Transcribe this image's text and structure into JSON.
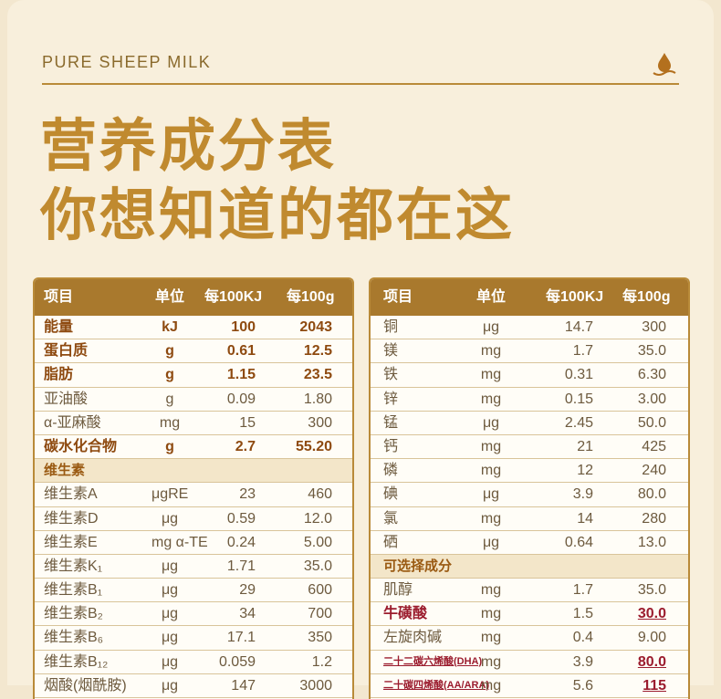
{
  "header": {
    "brand": "PURE SHEEP MILK"
  },
  "title": {
    "line1": "营养成分表",
    "line2": "你想知道的都在这"
  },
  "table_headers": {
    "item": "项目",
    "unit": "单位",
    "per_kj": "每100KJ",
    "per_100g": "每100g"
  },
  "left_rows": [
    {
      "name": "能量",
      "unit": "kJ",
      "per_kj": "100",
      "per_100g": "2043",
      "style": "bold"
    },
    {
      "name": "蛋白质",
      "unit": "g",
      "per_kj": "0.61",
      "per_100g": "12.5",
      "style": "bold"
    },
    {
      "name": "脂肪",
      "unit": "g",
      "per_kj": "1.15",
      "per_100g": "23.5",
      "style": "bold"
    },
    {
      "name": "亚油酸",
      "unit": "g",
      "per_kj": "0.09",
      "per_100g": "1.80",
      "style": ""
    },
    {
      "name": "α-亚麻酸",
      "unit": "mg",
      "per_kj": "15",
      "per_100g": "300",
      "style": ""
    },
    {
      "name": "碳水化合物",
      "unit": "g",
      "per_kj": "2.7",
      "per_100g": "55.20",
      "style": "bold"
    },
    {
      "name": "维生素",
      "unit": "",
      "per_kj": "",
      "per_100g": "",
      "style": "section"
    },
    {
      "name": "维生素A",
      "unit": "μgRE",
      "per_kj": "23",
      "per_100g": "460",
      "style": ""
    },
    {
      "name": "维生素D",
      "unit": "μg",
      "per_kj": "0.59",
      "per_100g": "12.0",
      "style": ""
    },
    {
      "name": "维生素E",
      "unit": "mg α-TE",
      "per_kj": "0.24",
      "per_100g": "5.00",
      "style": ""
    },
    {
      "name": "维生素K₁",
      "unit": "μg",
      "per_kj": "1.71",
      "per_100g": "35.0",
      "style": ""
    },
    {
      "name": "维生素B₁",
      "unit": "μg",
      "per_kj": "29",
      "per_100g": "600",
      "style": ""
    },
    {
      "name": "维生素B₂",
      "unit": "μg",
      "per_kj": "34",
      "per_100g": "700",
      "style": ""
    },
    {
      "name": "维生素B₆",
      "unit": "μg",
      "per_kj": "17.1",
      "per_100g": "350",
      "style": ""
    },
    {
      "name": "维生素B₁₂",
      "unit": "μg",
      "per_kj": "0.059",
      "per_100g": "1.2",
      "style": ""
    },
    {
      "name": "烟酸(烟酰胺)",
      "unit": "μg",
      "per_kj": "147",
      "per_100g": "3000",
      "style": ""
    }
  ],
  "right_rows": [
    {
      "name": "铜",
      "unit": "μg",
      "per_kj": "14.7",
      "per_100g": "300",
      "style": ""
    },
    {
      "name": "镁",
      "unit": "mg",
      "per_kj": "1.7",
      "per_100g": "35.0",
      "style": ""
    },
    {
      "name": "铁",
      "unit": "mg",
      "per_kj": "0.31",
      "per_100g": "6.30",
      "style": ""
    },
    {
      "name": "锌",
      "unit": "mg",
      "per_kj": "0.15",
      "per_100g": "3.00",
      "style": ""
    },
    {
      "name": "锰",
      "unit": "μg",
      "per_kj": "2.45",
      "per_100g": "50.0",
      "style": ""
    },
    {
      "name": "钙",
      "unit": "mg",
      "per_kj": "21",
      "per_100g": "425",
      "style": ""
    },
    {
      "name": "磷",
      "unit": "mg",
      "per_kj": "12",
      "per_100g": "240",
      "style": ""
    },
    {
      "name": "碘",
      "unit": "μg",
      "per_kj": "3.9",
      "per_100g": "80.0",
      "style": ""
    },
    {
      "name": "氯",
      "unit": "mg",
      "per_kj": "14",
      "per_100g": "280",
      "style": ""
    },
    {
      "name": "硒",
      "unit": "μg",
      "per_kj": "0.64",
      "per_100g": "13.0",
      "style": ""
    },
    {
      "name": "可选择成分",
      "unit": "",
      "per_kj": "",
      "per_100g": "",
      "style": "section"
    },
    {
      "name": "肌醇",
      "unit": "mg",
      "per_kj": "1.7",
      "per_100g": "35.0",
      "style": ""
    },
    {
      "name": "牛磺酸",
      "unit": "mg",
      "per_kj": "1.5",
      "per_100g": "30.0",
      "style": "rich"
    },
    {
      "name": "左旋肉碱",
      "unit": "mg",
      "per_kj": "0.4",
      "per_100g": "9.00",
      "style": ""
    },
    {
      "name": "二十二碳六烯酸(DHA)",
      "unit": "mg",
      "per_kj": "3.9",
      "per_100g": "80.0",
      "style": "rich dha"
    },
    {
      "name": "二十碳四烯酸(AA/ARA)",
      "unit": "mg",
      "per_kj": "5.6",
      "per_100g": "115",
      "style": "rich dha"
    }
  ],
  "colors": {
    "accent": "#b98a38",
    "header_bg": "#a9792d",
    "highlight": "#9b1c2e"
  },
  "icons": {
    "brand_icon": "milk-drop-icon"
  }
}
